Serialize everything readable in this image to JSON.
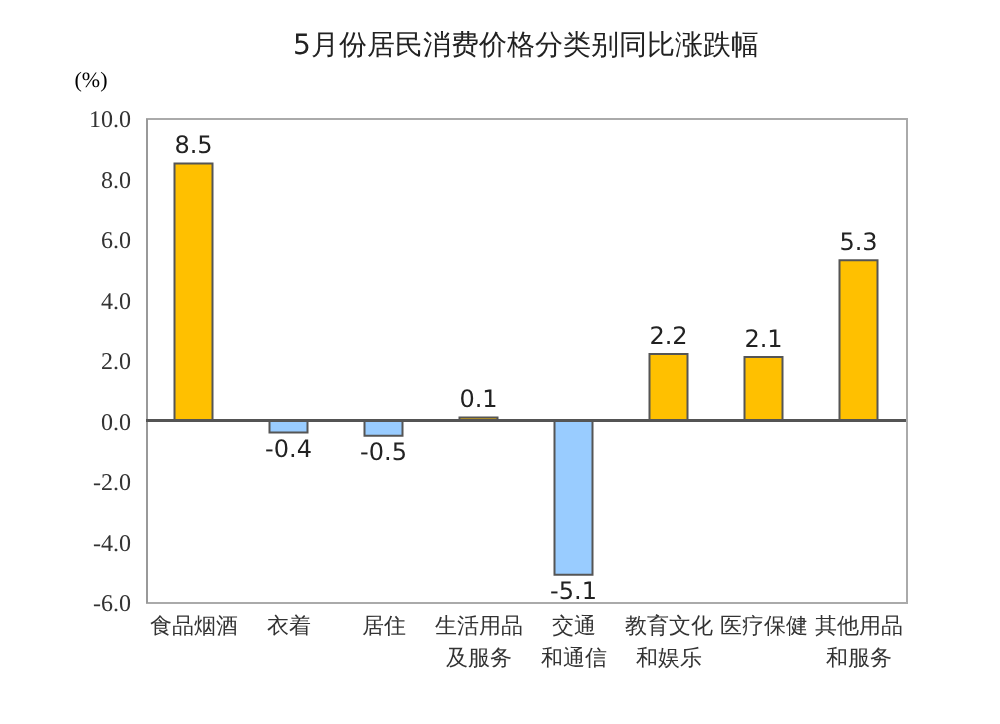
{
  "chart_data": {
    "type": "bar",
    "title": "5月份居民消费价格分类别同比涨跌幅",
    "ylabel": "(%)",
    "categories": [
      "食品烟酒",
      "衣着",
      "居住",
      "生活用品及服务",
      "交通和通信",
      "教育文化和娱乐",
      "医疗保健",
      "其他用品和服务"
    ],
    "values": [
      8.5,
      -0.4,
      -0.5,
      0.1,
      -5.1,
      2.2,
      2.1,
      5.3
    ],
    "colors": [
      "#ffc000",
      "#99ccff",
      "#99ccff",
      "#ffc000",
      "#99ccff",
      "#ffc000",
      "#ffc000",
      "#ffc000"
    ],
    "ylim": [
      -6,
      10
    ],
    "yticks": [
      {
        "value": -6,
        "label": "-6.0"
      },
      {
        "value": -4,
        "label": "-4.0"
      },
      {
        "value": -2,
        "label": "-2.0"
      },
      {
        "value": 0,
        "label": "0.0"
      },
      {
        "value": 2,
        "label": "2.0"
      },
      {
        "value": 4,
        "label": "4.0"
      },
      {
        "value": 6,
        "label": "6.0"
      },
      {
        "value": 8,
        "label": "8.0"
      },
      {
        "value": 10,
        "label": "10.0"
      }
    ],
    "data_labels": true
  }
}
